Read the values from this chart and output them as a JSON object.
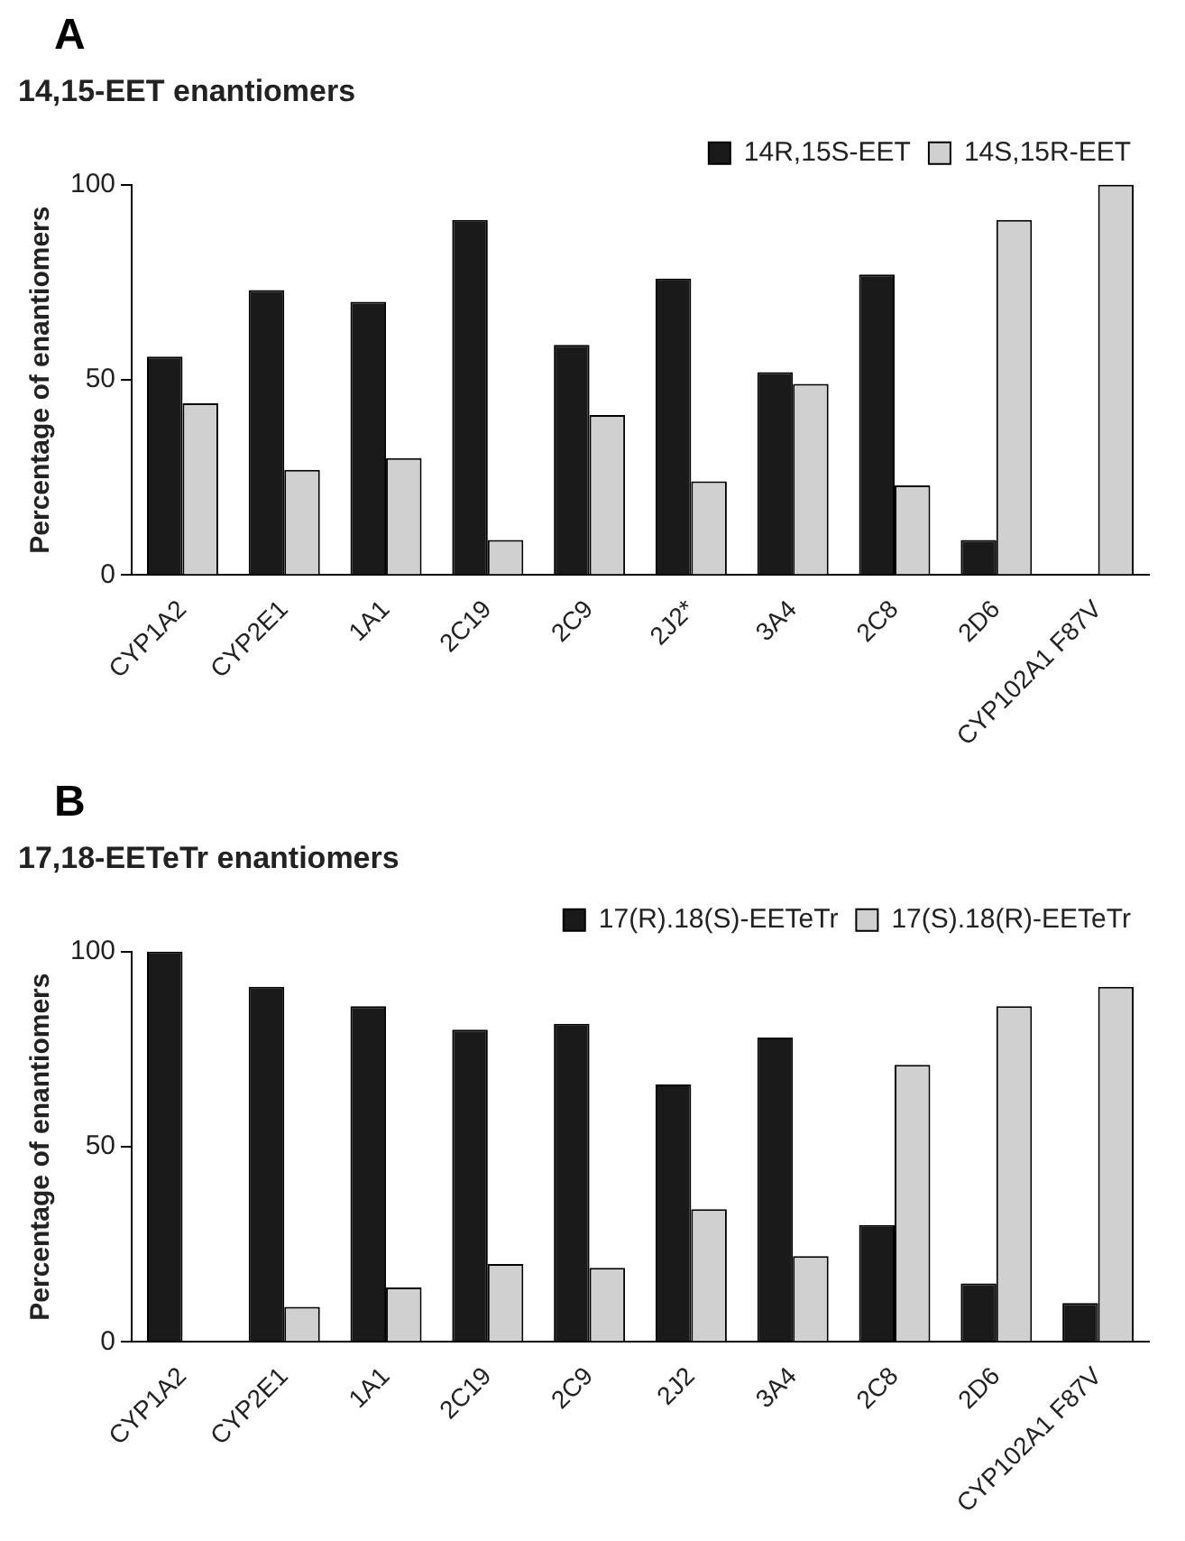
{
  "chart_data": [
    {
      "type": "bar",
      "title": "14,15-EET enantiomers",
      "ylabel": "Percentage of enantiomers",
      "annotations": [
        "A"
      ],
      "categories": [
        "CYP1A2",
        "CYP2E1",
        "1A1",
        "2C19",
        "2C9",
        "2J2*",
        "3A4",
        "2C8",
        "2D6",
        "CYP102A1 F87V"
      ],
      "series": [
        {
          "name": "14R,15S-EET",
          "color": "#1a1a1a",
          "values": [
            56,
            73,
            70,
            91,
            59,
            76,
            52,
            77,
            9,
            0
          ]
        },
        {
          "name": "14S,15R-EET",
          "color": "#d0d0d0",
          "values": [
            44,
            27,
            30,
            9,
            41,
            24,
            49,
            23,
            91,
            100
          ]
        }
      ],
      "ylim": [
        0,
        100
      ],
      "yticks": [
        0,
        50,
        100
      ],
      "grid": false,
      "legend": "top right"
    },
    {
      "type": "bar",
      "title": "17,18-EETeTr enantiomers",
      "ylabel": "Percentage of enantiomers",
      "annotations": [
        "B"
      ],
      "categories": [
        "CYP1A2",
        "CYP2E1",
        "1A1",
        "2C19",
        "2C9",
        "2J2",
        "3A4",
        "2C8",
        "2D6",
        "CYP102A1 F87V"
      ],
      "series": [
        {
          "name": "17(R).18(S)-EETeTr",
          "color": "#1a1a1a",
          "values": [
            100,
            91,
            86,
            80,
            81.5,
            66,
            78,
            30,
            15,
            10
          ]
        },
        {
          "name": "17(S).18(R)-EETeTr",
          "color": "#d0d0d0",
          "values": [
            0,
            9,
            14,
            20,
            19,
            34,
            22,
            71,
            86,
            91
          ]
        }
      ],
      "ylim": [
        0,
        100
      ],
      "yticks": [
        0,
        50,
        100
      ],
      "grid": false,
      "legend": "top right"
    }
  ]
}
